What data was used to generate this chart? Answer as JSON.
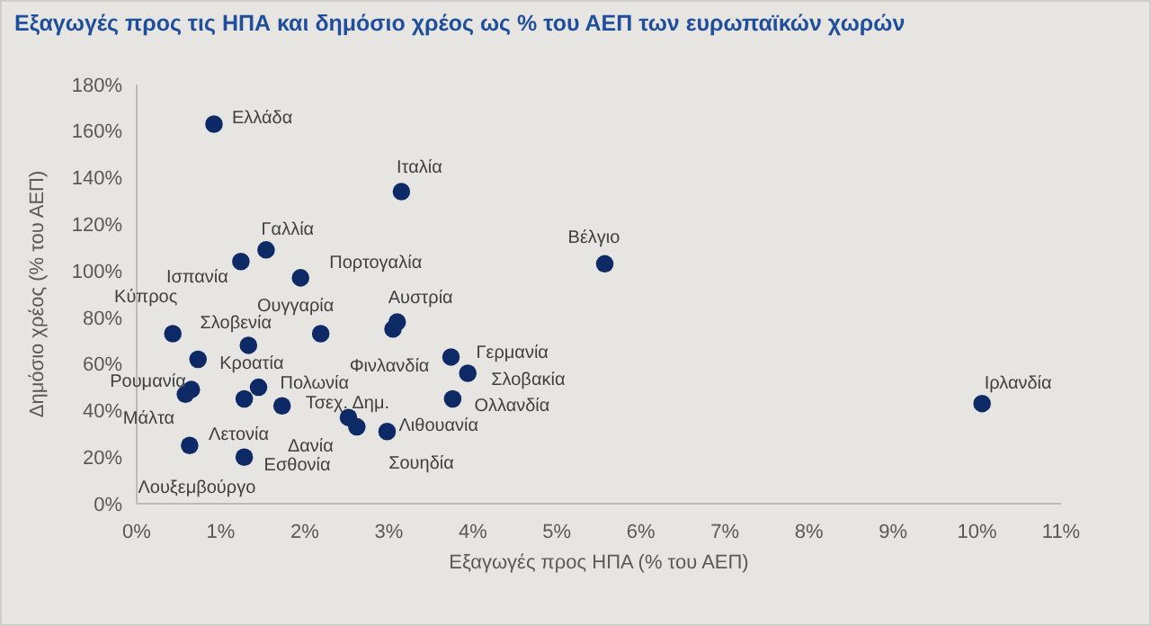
{
  "chart_data": {
    "type": "scatter",
    "title": "Εξαγωγές προς τις ΗΠΑ και δημόσιο χρέος ως % του ΑΕΠ των ευρωπαϊκών χωρών",
    "xlabel": "Εξαγωγές προς ΗΠΑ (% του ΑΕΠ)",
    "ylabel": "Δημόσιο χρέος (% του ΑΕΠ)",
    "series": [
      {
        "color": "#0d2a66",
        "x": [
          0.92,
          3.15,
          1.54,
          1.24,
          1.95,
          5.57,
          10.06,
          0.43,
          0.73,
          1.33,
          2.19,
          3.1,
          3.05,
          3.74,
          3.94,
          3.76,
          0.65,
          0.58,
          1.45,
          1.28,
          1.73,
          2.52,
          2.62,
          2.98,
          0.63,
          1.28
        ],
        "values": [
          163,
          134,
          109,
          104,
          97,
          103,
          43,
          73,
          62,
          68,
          73,
          78,
          75,
          63,
          56,
          45,
          49,
          47,
          50,
          45,
          42,
          37,
          33,
          31,
          25,
          20
        ]
      }
    ],
    "marker": "circle",
    "grid": false,
    "xlim": [
      0,
      11
    ],
    "xticks": [
      {
        "value": 0,
        "label": "0%"
      },
      {
        "value": 1,
        "label": "1%"
      },
      {
        "value": 2,
        "label": "2%"
      },
      {
        "value": 3,
        "label": "3%"
      },
      {
        "value": 4,
        "label": "4%"
      },
      {
        "value": 5,
        "label": "5%"
      },
      {
        "value": 6,
        "label": "6%"
      },
      {
        "value": 7,
        "label": "7%"
      },
      {
        "value": 8,
        "label": "8%"
      },
      {
        "value": 9,
        "label": "9%"
      },
      {
        "value": 10,
        "label": "10%"
      },
      {
        "value": 11,
        "label": "11%"
      }
    ],
    "ylim": [
      0,
      180
    ],
    "yticks": [
      {
        "value": 0,
        "label": "0%"
      },
      {
        "value": 20,
        "label": "20%"
      },
      {
        "value": 40,
        "label": "40%"
      },
      {
        "value": 60,
        "label": "60%"
      },
      {
        "value": 80,
        "label": "80%"
      },
      {
        "value": 100,
        "label": "100%"
      },
      {
        "value": 120,
        "label": "120%"
      },
      {
        "value": 140,
        "label": "140%"
      },
      {
        "value": 160,
        "label": "160%"
      },
      {
        "value": 180,
        "label": "180%"
      }
    ],
    "annotations": [
      {
        "text": "Ελλάδα",
        "x": 0.92,
        "y": 163
      },
      {
        "text": "Ιταλία",
        "x": 3.15,
        "y": 134
      },
      {
        "text": "Γαλλία",
        "x": 1.54,
        "y": 109
      },
      {
        "text": "Ισπανία",
        "x": 1.24,
        "y": 104
      },
      {
        "text": "Πορτογαλία",
        "x": 1.95,
        "y": 97
      },
      {
        "text": "Βέλγιο",
        "x": 5.57,
        "y": 103
      },
      {
        "text": "Ιρλανδία",
        "x": 10.06,
        "y": 43
      },
      {
        "text": "Κύπρος",
        "x": 0.43,
        "y": 73
      },
      {
        "text": "Κροατία",
        "x": 0.73,
        "y": 62
      },
      {
        "text": "Σλοβενία",
        "x": 1.33,
        "y": 68
      },
      {
        "text": "Ουγγαρία",
        "x": 2.19,
        "y": 73
      },
      {
        "text": "Αυστρία",
        "x": 3.1,
        "y": 78
      },
      {
        "text": "Φινλανδία",
        "x": 3.05,
        "y": 75
      },
      {
        "text": "Γερμανία",
        "x": 3.74,
        "y": 63
      },
      {
        "text": "Σλοβακία",
        "x": 3.94,
        "y": 56
      },
      {
        "text": "Ολλανδία",
        "x": 3.76,
        "y": 45
      },
      {
        "text": "Ρουμανία",
        "x": 0.65,
        "y": 49
      },
      {
        "text": "Μάλτα",
        "x": 0.58,
        "y": 47
      },
      {
        "text": "Πολωνία",
        "x": 1.45,
        "y": 50
      },
      {
        "text": "Λετονία",
        "x": 1.28,
        "y": 45
      },
      {
        "text": "Τσεχ. Δημ.",
        "x": 1.73,
        "y": 42
      },
      {
        "text": "Λιθουανία",
        "x": 2.52,
        "y": 37
      },
      {
        "text": "Δανία",
        "x": 2.62,
        "y": 33
      },
      {
        "text": "Σουηδία",
        "x": 2.98,
        "y": 31
      },
      {
        "text": "Λουξεμβούργο",
        "x": 0.63,
        "y": 25
      },
      {
        "text": "Εσθονία",
        "x": 1.28,
        "y": 20
      }
    ]
  }
}
